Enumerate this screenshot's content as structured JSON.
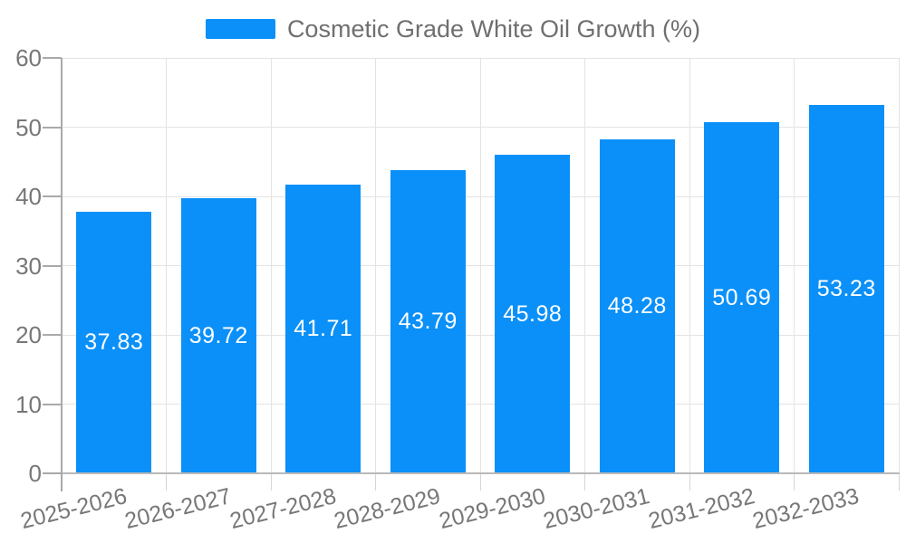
{
  "chart_data": {
    "type": "bar",
    "title": "Cosmetic Grade White Oil Growth (%)",
    "legend_position": "top",
    "categories": [
      "2025-2026",
      "2026-2027",
      "2027-2028",
      "2028-2029",
      "2029-2030",
      "2030-2031",
      "2031-2032",
      "2032-2033"
    ],
    "values": [
      37.83,
      39.72,
      41.71,
      43.79,
      45.98,
      48.28,
      50.69,
      53.23
    ],
    "series_name": "Cosmetic Grade White Oil Growth (%)",
    "xlabel": "",
    "ylabel": "",
    "ylim": [
      0,
      60
    ],
    "yticks": [
      0,
      10,
      20,
      30,
      40,
      50,
      60
    ],
    "grid": true,
    "value_label_position": "inside-middle",
    "colors": {
      "bar": "#0a90f8",
      "value_label": "#ffffff",
      "axis_text": "#777777",
      "legend_text": "#6f6f6f",
      "gridline": "#e3e3e3",
      "y_axis_line": "#a9a9a9",
      "x_axis_line": "#b9b9b9",
      "x_tick": "#d6d6d6"
    }
  }
}
